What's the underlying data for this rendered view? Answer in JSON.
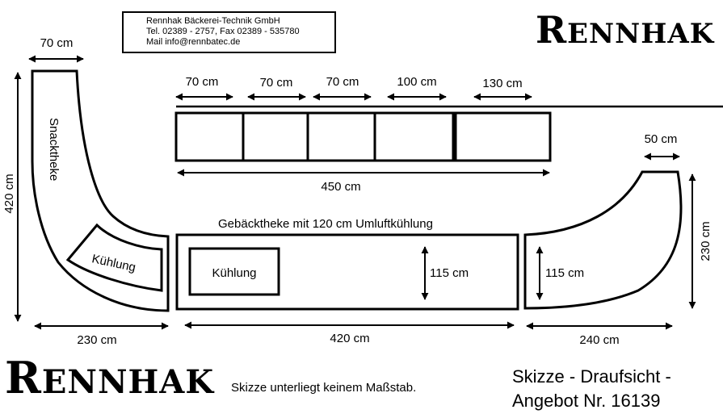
{
  "company": {
    "name": "Rennhak Bäckerei-Technik GmbH",
    "phone": "Tel. 02389 - 2757, Fax 02389 - 535780",
    "mail": "Mail info@rennbatec.de"
  },
  "logo": {
    "initial": "R",
    "rest": "ENNHAK"
  },
  "top_units": {
    "widths": [
      "70 cm",
      "70 cm",
      "70 cm",
      "100 cm",
      "130 cm"
    ],
    "total": "450 cm"
  },
  "left_counter": {
    "name": "Snacktheke",
    "cooling": "Kühlung",
    "width": "70 cm",
    "height": "420 cm",
    "bottom": "230 cm"
  },
  "middle_counter": {
    "title": "Gebäcktheke mit 120 cm Umluftkühlung",
    "cooling": "Kühlung",
    "depth": "115 cm",
    "length": "420 cm"
  },
  "right_counter": {
    "top_width": "50 cm",
    "height": "230 cm",
    "depth": "115 cm",
    "bottom": "240 cm"
  },
  "note": "Skizze unterliegt keinem Maßstab.",
  "title": {
    "line1": "Skizze - Draufsicht -",
    "line2": "Angebot Nr. 16139"
  }
}
